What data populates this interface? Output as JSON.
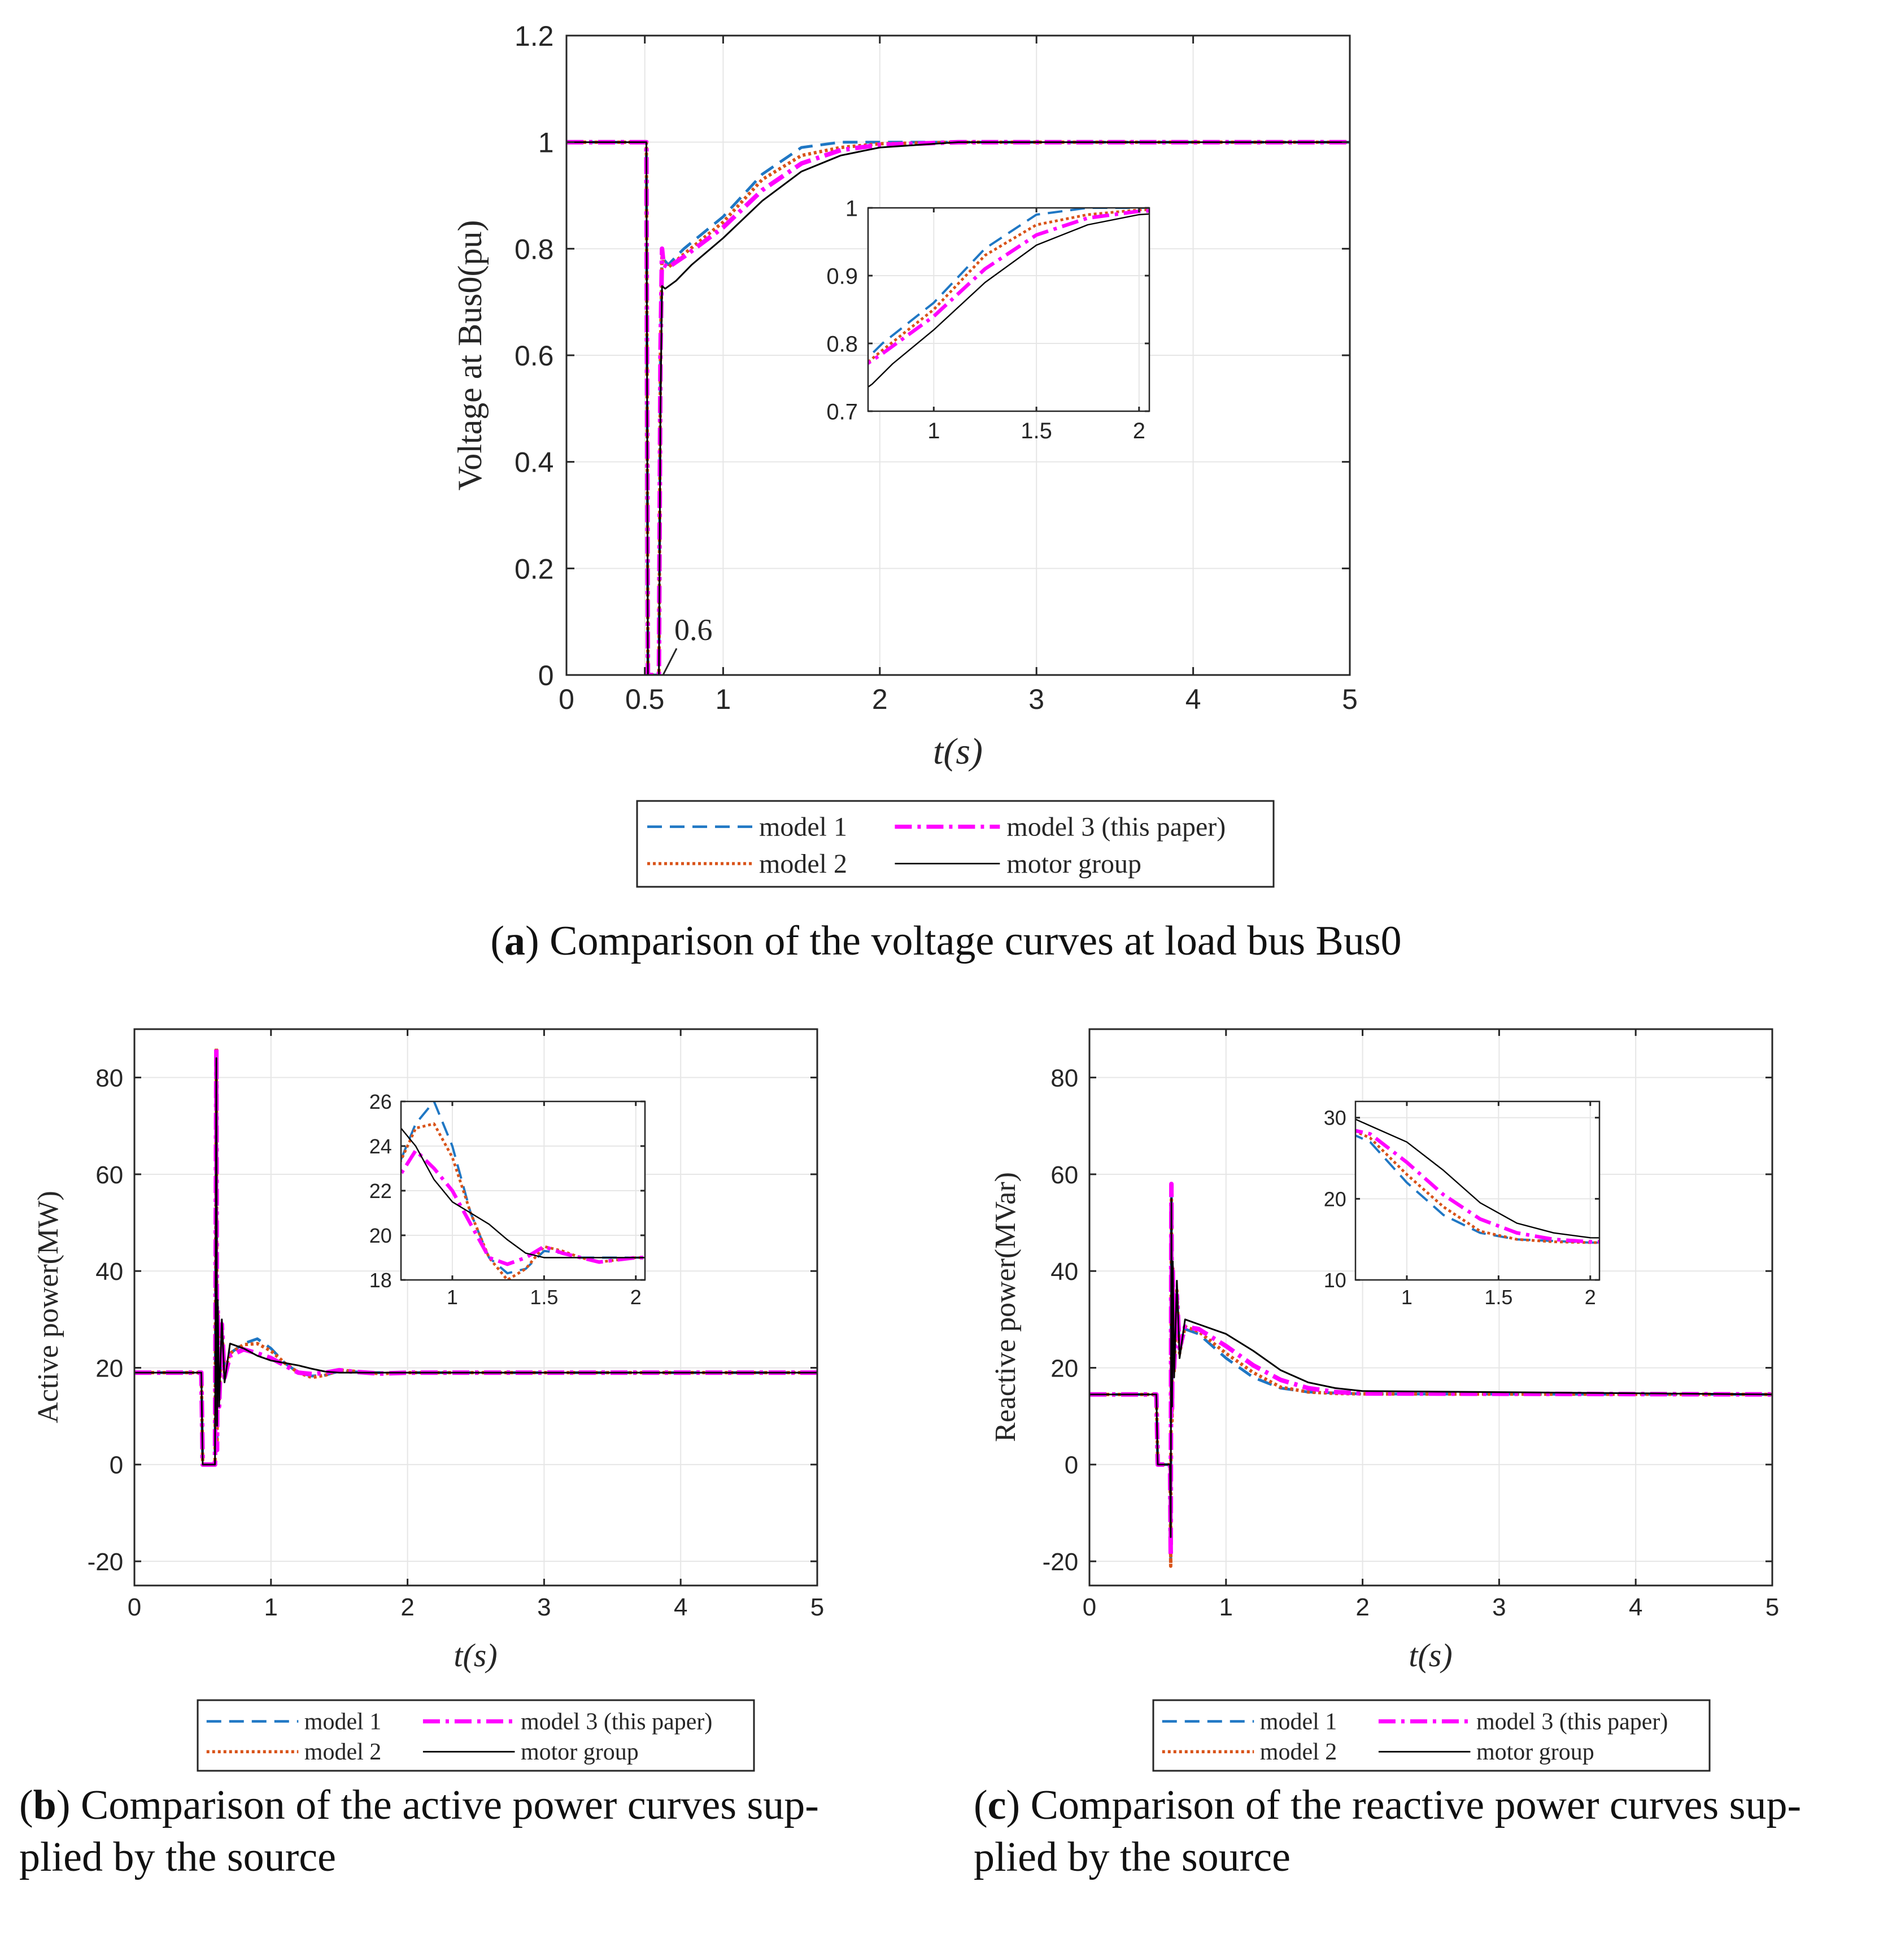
{
  "colors": {
    "model1": "#1f77c4",
    "model2": "#d95319",
    "model3": "#ff00ff",
    "motor": "#000000",
    "grid": "#e6e6e6",
    "axis": "#262626"
  },
  "legend": {
    "model1": "model 1",
    "model2": "model 2",
    "model3": "model 3 (this paper)",
    "motor": "motor group"
  },
  "captions": {
    "a": {
      "letter": "a",
      "text": "Comparison of the voltage curves at load bus Bus0"
    },
    "b": {
      "letter": "b",
      "text": "Comparison of the active power curves sup-",
      "text2": "plied by the source"
    },
    "c": {
      "letter": "c",
      "text": "Comparison of the reactive power curves sup-",
      "text2": "plied by the source"
    }
  },
  "chart_data": [
    {
      "id": "a",
      "type": "line",
      "title": "",
      "xlabel": "t(s)",
      "ylabel": "Voltage at Bus0(pu)",
      "xlim": [
        0,
        5
      ],
      "ylim": [
        0,
        1.2
      ],
      "xticks": [
        0,
        0.5,
        1,
        2,
        3,
        4,
        5
      ],
      "xtick_labels": [
        "0",
        "0.5",
        "1",
        "2",
        "3",
        "4",
        "5"
      ],
      "yticks": [
        0,
        0.2,
        0.4,
        0.6,
        0.8,
        1,
        1.2
      ],
      "ytick_labels": [
        "0",
        "0.2",
        "0.4",
        "0.6",
        "0.8",
        "1",
        "1.2"
      ],
      "annotation": {
        "text": "0.6",
        "x": 0.6,
        "y": 0
      },
      "series": [
        {
          "name": "model 1",
          "key": "model1",
          "x": [
            0,
            0.49,
            0.51,
            0.52,
            0.59,
            0.6,
            0.61,
            0.62,
            0.65,
            0.75,
            1.0,
            1.25,
            1.5,
            1.75,
            2.0,
            2.5,
            5
          ],
          "y": [
            1,
            1,
            1,
            0,
            0,
            0.6,
            0.8,
            0.78,
            0.77,
            0.8,
            0.86,
            0.94,
            0.99,
            1.0,
            1.0,
            1.0,
            1.0
          ]
        },
        {
          "name": "model 2",
          "key": "model2",
          "x": [
            0,
            0.49,
            0.51,
            0.52,
            0.59,
            0.6,
            0.61,
            0.62,
            0.65,
            0.75,
            1.0,
            1.25,
            1.5,
            1.75,
            2.0,
            2.5,
            5
          ],
          "y": [
            1,
            1,
            1,
            0,
            0,
            0.6,
            0.79,
            0.77,
            0.765,
            0.79,
            0.85,
            0.93,
            0.975,
            0.99,
            0.997,
            1.0,
            1.0
          ]
        },
        {
          "name": "model 3 (this paper)",
          "key": "model3",
          "x": [
            0,
            0.49,
            0.51,
            0.52,
            0.59,
            0.6,
            0.61,
            0.62,
            0.65,
            0.75,
            1.0,
            1.25,
            1.5,
            1.75,
            2.0,
            2.5,
            5
          ],
          "y": [
            1,
            1,
            1,
            0,
            0,
            0.6,
            0.8,
            0.77,
            0.765,
            0.785,
            0.84,
            0.91,
            0.96,
            0.985,
            0.995,
            1.0,
            1.0
          ]
        },
        {
          "name": "motor group",
          "key": "motor",
          "x": [
            0,
            0.49,
            0.51,
            0.52,
            0.59,
            0.6,
            0.61,
            0.63,
            0.7,
            0.8,
            1.0,
            1.25,
            1.5,
            1.75,
            2.0,
            2.5,
            5
          ],
          "y": [
            1,
            1,
            1,
            0,
            0,
            0.5,
            0.73,
            0.725,
            0.74,
            0.77,
            0.82,
            0.89,
            0.945,
            0.975,
            0.99,
            1.0,
            1.0
          ]
        }
      ],
      "inset": {
        "xlim": [
          0.68,
          2.05
        ],
        "ylim": [
          0.7,
          1.0
        ],
        "xticks": [
          1,
          1.5,
          2
        ],
        "xtick_labels": [
          "1",
          "1.5",
          "2"
        ],
        "yticks": [
          0.7,
          0.8,
          0.9,
          1
        ],
        "ytick_labels": [
          "0.7",
          "0.8",
          "0.9",
          "1"
        ]
      }
    },
    {
      "id": "b",
      "type": "line",
      "title": "",
      "xlabel": "t(s)",
      "ylabel": "Active power(MW)",
      "xlim": [
        0,
        5
      ],
      "ylim": [
        -25,
        90
      ],
      "xticks": [
        0,
        1,
        2,
        3,
        4,
        5
      ],
      "xtick_labels": [
        "0",
        "1",
        "2",
        "3",
        "4",
        "5"
      ],
      "yticks": [
        -20,
        0,
        20,
        40,
        60,
        80
      ],
      "ytick_labels": [
        "-20",
        "0",
        "20",
        "40",
        "60",
        "80"
      ],
      "series": [
        {
          "name": "model 1",
          "key": "model1",
          "x": [
            0,
            0.49,
            0.5,
            0.59,
            0.6,
            0.605,
            0.61,
            0.62,
            0.64,
            0.66,
            0.7,
            0.8,
            0.9,
            1.0,
            1.1,
            1.2,
            1.3,
            1.4,
            1.5,
            1.6,
            1.7,
            1.8,
            2.0,
            5
          ],
          "y": [
            19,
            19,
            0,
            0,
            86,
            5,
            30,
            14,
            27,
            20,
            23,
            25,
            26,
            24,
            21,
            19,
            18.3,
            18.5,
            19.3,
            19.2,
            19,
            19,
            19,
            19
          ]
        },
        {
          "name": "model 2",
          "key": "model2",
          "x": [
            0,
            0.49,
            0.5,
            0.59,
            0.6,
            0.605,
            0.61,
            0.62,
            0.64,
            0.66,
            0.7,
            0.8,
            0.9,
            1.0,
            1.1,
            1.2,
            1.3,
            1.4,
            1.5,
            1.6,
            1.7,
            1.8,
            2.0,
            5
          ],
          "y": [
            19,
            19,
            0,
            0,
            86,
            4,
            31,
            13,
            28,
            19,
            23,
            24.8,
            25,
            23.5,
            21,
            19,
            18,
            18.5,
            19.5,
            19.3,
            19,
            18.8,
            19,
            19
          ]
        },
        {
          "name": "model 3 (this paper)",
          "key": "model3",
          "x": [
            0,
            0.49,
            0.5,
            0.59,
            0.6,
            0.605,
            0.61,
            0.62,
            0.64,
            0.66,
            0.7,
            0.8,
            0.9,
            1.0,
            1.1,
            1.2,
            1.3,
            1.4,
            1.5,
            1.6,
            1.7,
            1.8,
            2.0,
            5
          ],
          "y": [
            19,
            19,
            0,
            0,
            86,
            3,
            32,
            12,
            29,
            18,
            22.5,
            23.8,
            23,
            22,
            20.5,
            19,
            18.7,
            19,
            19.5,
            19.2,
            19,
            18.8,
            19,
            19
          ]
        },
        {
          "name": "motor group",
          "key": "motor",
          "x": [
            0,
            0.49,
            0.5,
            0.59,
            0.6,
            0.605,
            0.61,
            0.62,
            0.64,
            0.66,
            0.7,
            0.8,
            0.9,
            1.0,
            1.1,
            1.2,
            1.3,
            1.4,
            1.5,
            1.6,
            1.7,
            1.8,
            2.0,
            5
          ],
          "y": [
            19,
            19,
            0,
            0,
            84,
            8,
            34,
            12,
            30,
            17,
            25,
            24,
            22.5,
            21.5,
            21,
            20.5,
            19.8,
            19.2,
            19,
            19,
            19,
            19,
            19,
            19
          ]
        }
      ],
      "inset": {
        "xlim": [
          0.72,
          2.05
        ],
        "ylim": [
          18,
          26
        ],
        "xticks": [
          1,
          1.5,
          2
        ],
        "xtick_labels": [
          "1",
          "1.5",
          "2"
        ],
        "yticks": [
          18,
          20,
          22,
          24,
          26
        ],
        "ytick_labels": [
          "18",
          "20",
          "22",
          "24",
          "26"
        ]
      }
    },
    {
      "id": "c",
      "type": "line",
      "title": "",
      "xlabel": "t(s)",
      "ylabel": "Reactive power(MVar)",
      "xlim": [
        0,
        5
      ],
      "ylim": [
        -25,
        90
      ],
      "xticks": [
        0,
        1,
        2,
        3,
        4,
        5
      ],
      "xtick_labels": [
        "0",
        "1",
        "2",
        "3",
        "4",
        "5"
      ],
      "yticks": [
        -20,
        0,
        20,
        40,
        60,
        80
      ],
      "ytick_labels": [
        "-20",
        "0",
        "20",
        "40",
        "60",
        "80"
      ],
      "series": [
        {
          "name": "model 1",
          "key": "model1",
          "x": [
            0,
            0.49,
            0.5,
            0.59,
            0.595,
            0.6,
            0.605,
            0.61,
            0.62,
            0.64,
            0.66,
            0.7,
            0.8,
            1.0,
            1.2,
            1.4,
            1.6,
            1.8,
            2.0,
            5
          ],
          "y": [
            14.5,
            14.5,
            0,
            0,
            -20,
            58,
            10,
            40,
            20,
            35,
            24,
            28,
            27,
            22,
            18,
            15.8,
            15,
            14.8,
            14.6,
            14.5
          ]
        },
        {
          "name": "model 2",
          "key": "model2",
          "x": [
            0,
            0.49,
            0.5,
            0.59,
            0.595,
            0.6,
            0.605,
            0.61,
            0.62,
            0.64,
            0.66,
            0.7,
            0.8,
            1.0,
            1.2,
            1.4,
            1.6,
            1.8,
            2.0,
            5
          ],
          "y": [
            14.5,
            14.5,
            0,
            0,
            -21,
            57,
            9,
            41,
            19,
            36,
            23,
            28.5,
            27.5,
            23,
            19,
            16,
            15,
            14.7,
            14.6,
            14.5
          ]
        },
        {
          "name": "model 3 (this paper)",
          "key": "model3",
          "x": [
            0,
            0.49,
            0.5,
            0.59,
            0.595,
            0.6,
            0.605,
            0.61,
            0.62,
            0.64,
            0.66,
            0.7,
            0.8,
            1.0,
            1.2,
            1.4,
            1.6,
            1.8,
            2.0,
            5
          ],
          "y": [
            14.5,
            14.5,
            0,
            0,
            -19,
            58,
            11,
            40,
            20,
            35,
            24,
            28.5,
            28,
            24.5,
            20.5,
            17.5,
            15.8,
            15,
            14.7,
            14.5
          ]
        },
        {
          "name": "motor group",
          "key": "motor",
          "x": [
            0,
            0.49,
            0.5,
            0.59,
            0.595,
            0.6,
            0.605,
            0.61,
            0.62,
            0.64,
            0.66,
            0.7,
            0.8,
            1.0,
            1.2,
            1.4,
            1.6,
            1.8,
            2.0,
            5
          ],
          "y": [
            14.5,
            14.5,
            0,
            0,
            -15,
            55,
            12,
            42,
            18,
            38,
            22,
            30,
            29,
            27,
            23.5,
            19.5,
            17,
            15.8,
            15.2,
            14.5
          ]
        }
      ],
      "inset": {
        "xlim": [
          0.72,
          2.05
        ],
        "ylim": [
          10,
          32
        ],
        "xticks": [
          1,
          1.5,
          2
        ],
        "xtick_labels": [
          "1",
          "1.5",
          "2"
        ],
        "yticks": [
          10,
          20,
          30
        ],
        "ytick_labels": [
          "10",
          "20",
          "30"
        ]
      }
    }
  ]
}
